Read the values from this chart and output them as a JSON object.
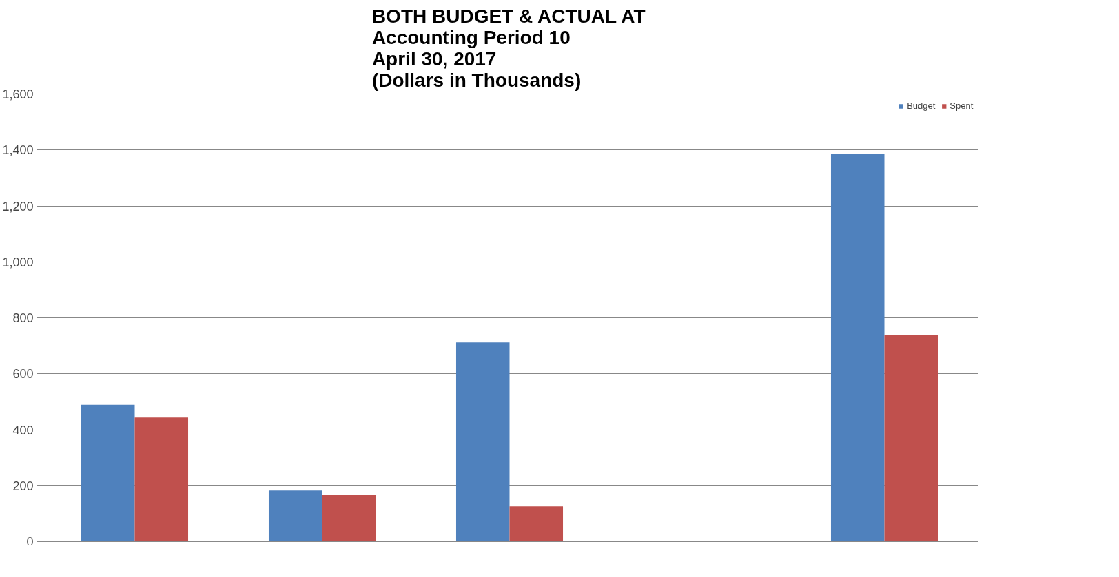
{
  "chart_data": {
    "type": "bar",
    "title": "BOTH BUDGET & ACTUAL AT\nAccounting Period 10\nApril 30, 2017\n(Dollars in Thousands)",
    "categories": [
      null,
      null,
      null,
      null,
      null
    ],
    "series": [
      {
        "name": "Budget",
        "color": "#4f81bd",
        "values": [
          489,
          183,
          712,
          null,
          1387
        ]
      },
      {
        "name": "Spent",
        "color": "#c0504d",
        "values": [
          444,
          166,
          126,
          null,
          738
        ]
      }
    ],
    "ylim": [
      0,
      1600
    ],
    "yticks": [
      {
        "value": 0,
        "label": "0"
      },
      {
        "value": 200,
        "label": "200"
      },
      {
        "value": 400,
        "label": "400"
      },
      {
        "value": 600,
        "label": "600"
      },
      {
        "value": 800,
        "label": "800"
      },
      {
        "value": 1000,
        "label": "1,000"
      },
      {
        "value": 1200,
        "label": "1,200"
      },
      {
        "value": 1400,
        "label": "1,400"
      },
      {
        "value": 1600,
        "label": "1,600"
      }
    ],
    "grid": "y",
    "legend": "top right",
    "tick_labels": "y"
  }
}
